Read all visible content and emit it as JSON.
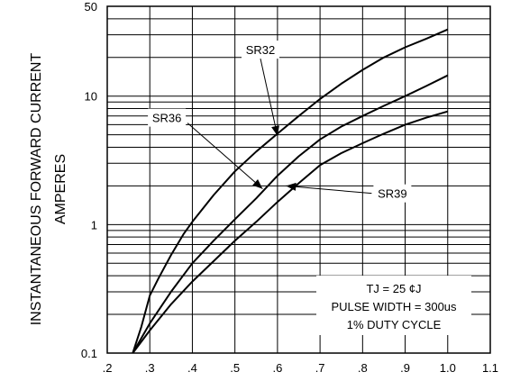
{
  "chart_data": {
    "type": "line",
    "title": "",
    "xlabel": "",
    "ylabel_lines": [
      "INSTANTANEOUS FORWARD CURRENT",
      "AMPERES"
    ],
    "xscale": "linear",
    "yscale": "log",
    "xlim": [
      0.2,
      1.1
    ],
    "ylim": [
      0.1,
      50
    ],
    "x_ticks": [
      {
        "value": 0.2,
        "label": ".2"
      },
      {
        "value": 0.3,
        "label": ".3"
      },
      {
        "value": 0.4,
        "label": ".4"
      },
      {
        "value": 0.5,
        "label": ".5"
      },
      {
        "value": 0.6,
        "label": ".6"
      },
      {
        "value": 0.7,
        "label": ".7"
      },
      {
        "value": 0.8,
        "label": ".8"
      },
      {
        "value": 0.9,
        "label": ".9"
      },
      {
        "value": 1.0,
        "label": "1.0"
      },
      {
        "value": 1.1,
        "label": "1.1"
      }
    ],
    "y_ticks": [
      {
        "value": 0.1,
        "label": "0.1"
      },
      {
        "value": 1,
        "label": "1"
      },
      {
        "value": 10,
        "label": "10"
      },
      {
        "value": 50,
        "label": "50"
      }
    ],
    "grid": true,
    "series": [
      {
        "name": "SR32",
        "x": [
          0.26,
          0.28,
          0.3,
          0.32,
          0.35,
          0.38,
          0.4,
          0.45,
          0.5,
          0.55,
          0.6,
          0.65,
          0.7,
          0.75,
          0.8,
          0.85,
          0.9,
          0.95,
          1.0
        ],
        "y": [
          0.1,
          0.16,
          0.28,
          0.38,
          0.58,
          0.85,
          1.05,
          1.7,
          2.6,
          3.7,
          5.1,
          7.0,
          9.5,
          12.5,
          16,
          20,
          24,
          28,
          33
        ]
      },
      {
        "name": "SR36",
        "x": [
          0.26,
          0.3,
          0.35,
          0.4,
          0.45,
          0.5,
          0.55,
          0.6,
          0.65,
          0.7,
          0.75,
          0.8,
          0.85,
          0.9,
          0.95,
          1.0
        ],
        "y": [
          0.1,
          0.17,
          0.3,
          0.5,
          0.75,
          1.1,
          1.6,
          2.4,
          3.4,
          4.6,
          5.8,
          7.0,
          8.4,
          10,
          12,
          14.5
        ]
      },
      {
        "name": "SR39",
        "x": [
          0.26,
          0.3,
          0.35,
          0.4,
          0.45,
          0.5,
          0.55,
          0.6,
          0.65,
          0.7,
          0.75,
          0.8,
          0.85,
          0.9,
          0.95,
          1.0
        ],
        "y": [
          0.1,
          0.15,
          0.24,
          0.36,
          0.52,
          0.75,
          1.05,
          1.5,
          2.1,
          2.9,
          3.6,
          4.3,
          5.1,
          6.0,
          6.8,
          7.6
        ]
      }
    ],
    "annotations": [
      {
        "text": "SR32",
        "x": 0.56,
        "y": 23,
        "arrow_to": [
          0.6,
          4.9
        ]
      },
      {
        "text": "SR36",
        "x": 0.34,
        "y": 6.8,
        "arrow_to": [
          0.565,
          1.9
        ]
      },
      {
        "text": "SR39",
        "x": 0.87,
        "y": 1.75,
        "arrow_to": [
          0.62,
          2.0
        ]
      }
    ],
    "note_lines": [
      "TJ = 25 ¢J",
      "PULSE WIDTH = 300us",
      "1% DUTY CYCLE"
    ],
    "colors": {
      "line": "#000000",
      "grid": "#000000",
      "background": "#ffffff"
    }
  }
}
